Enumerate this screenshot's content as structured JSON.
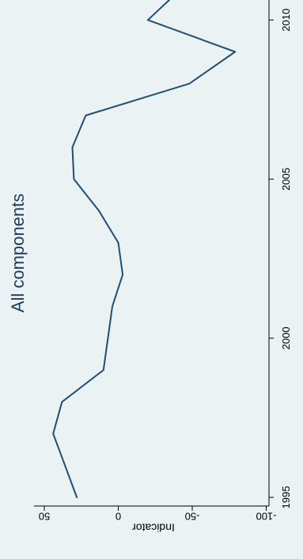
{
  "chart_data": {
    "type": "line",
    "title": "All components",
    "xlabel": "",
    "ylabel": "Indicator",
    "xlim": [
      1995,
      2011
    ],
    "ylim": [
      -100,
      50
    ],
    "xticks": [
      "1995",
      "2000",
      "2005",
      "2010"
    ],
    "yticks": [
      "50",
      "0",
      "-50",
      "-100"
    ],
    "grid": false,
    "colors": {
      "background": "#eaf2f3",
      "line": "#1f4e79",
      "title": "#1f3b63",
      "axis": "#000000"
    },
    "series": [
      {
        "x": [
          1995,
          1996,
          1997,
          1998,
          1999,
          2000,
          2001,
          2002,
          2003,
          2004,
          2005,
          2006,
          2007,
          2008,
          2009,
          2010,
          2011
        ],
        "y": [
          28,
          36,
          44,
          38,
          10,
          7,
          4,
          -3,
          0,
          13,
          30,
          31,
          22,
          -48,
          -79,
          -20,
          -43
        ]
      }
    ]
  }
}
